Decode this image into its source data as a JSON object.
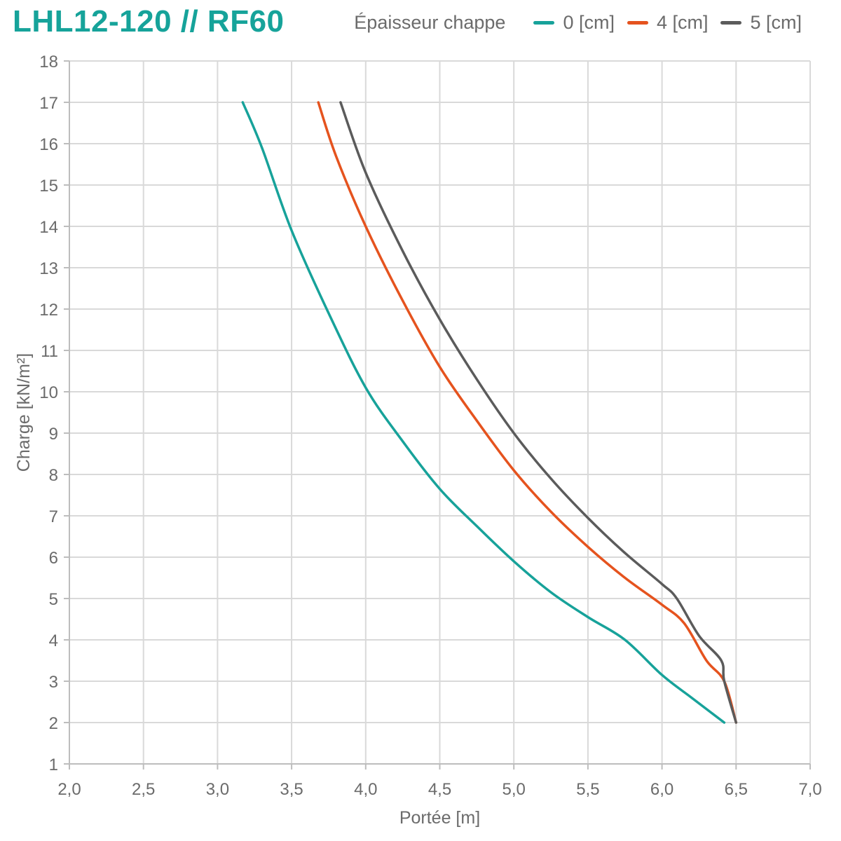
{
  "header": {
    "title": "LHL12-120 // RF60",
    "legend_title": "Épaisseur chappe"
  },
  "chart_data": {
    "type": "line",
    "title": "LHL12-120 // RF60",
    "xlabel": "Portée [m]",
    "ylabel": "Charge [kN/m²]",
    "xlim": [
      2.0,
      7.0
    ],
    "ylim": [
      1,
      18
    ],
    "x_ticks": [
      2.0,
      2.5,
      3.0,
      3.5,
      4.0,
      4.5,
      5.0,
      5.5,
      6.0,
      6.5,
      7.0
    ],
    "x_tick_labels": [
      "2,0",
      "2,5",
      "3,0",
      "3,5",
      "4,0",
      "4,5",
      "5,0",
      "5,5",
      "6,0",
      "6,5",
      "7,0"
    ],
    "y_ticks": [
      1,
      2,
      3,
      4,
      5,
      6,
      7,
      8,
      9,
      10,
      11,
      12,
      13,
      14,
      15,
      16,
      17,
      18
    ],
    "y_tick_labels": [
      "1",
      "2",
      "3",
      "4",
      "5",
      "6",
      "7",
      "8",
      "9",
      "10",
      "11",
      "12",
      "13",
      "14",
      "15",
      "16",
      "17",
      "18"
    ],
    "grid": true,
    "legend_position": "top-right",
    "series": [
      {
        "name": "0 [cm]",
        "color": "#17a29a",
        "points": [
          [
            3.17,
            17.0
          ],
          [
            3.3,
            15.9
          ],
          [
            3.5,
            13.9
          ],
          [
            3.75,
            11.9
          ],
          [
            4.0,
            10.1
          ],
          [
            4.25,
            8.8
          ],
          [
            4.5,
            7.65
          ],
          [
            4.75,
            6.75
          ],
          [
            5.0,
            5.9
          ],
          [
            5.25,
            5.15
          ],
          [
            5.5,
            4.55
          ],
          [
            5.75,
            4.0
          ],
          [
            6.0,
            3.15
          ],
          [
            6.2,
            2.6
          ],
          [
            6.42,
            2.0
          ]
        ]
      },
      {
        "name": "4 [cm]",
        "color": "#e5531e",
        "points": [
          [
            3.68,
            17.0
          ],
          [
            3.8,
            15.7
          ],
          [
            4.0,
            14.0
          ],
          [
            4.25,
            12.2
          ],
          [
            4.5,
            10.6
          ],
          [
            4.75,
            9.3
          ],
          [
            5.0,
            8.1
          ],
          [
            5.25,
            7.1
          ],
          [
            5.5,
            6.25
          ],
          [
            5.75,
            5.5
          ],
          [
            6.0,
            4.85
          ],
          [
            6.15,
            4.4
          ],
          [
            6.3,
            3.5
          ],
          [
            6.42,
            3.0
          ],
          [
            6.5,
            2.0
          ]
        ]
      },
      {
        "name": "5 [cm]",
        "color": "#5b5b5b",
        "points": [
          [
            3.83,
            17.0
          ],
          [
            4.0,
            15.3
          ],
          [
            4.25,
            13.4
          ],
          [
            4.5,
            11.75
          ],
          [
            4.75,
            10.3
          ],
          [
            5.0,
            9.0
          ],
          [
            5.25,
            7.9
          ],
          [
            5.5,
            6.95
          ],
          [
            5.75,
            6.1
          ],
          [
            6.0,
            5.35
          ],
          [
            6.1,
            5.0
          ],
          [
            6.25,
            4.1
          ],
          [
            6.4,
            3.5
          ],
          [
            6.42,
            3.0
          ],
          [
            6.5,
            2.0
          ]
        ]
      }
    ]
  }
}
